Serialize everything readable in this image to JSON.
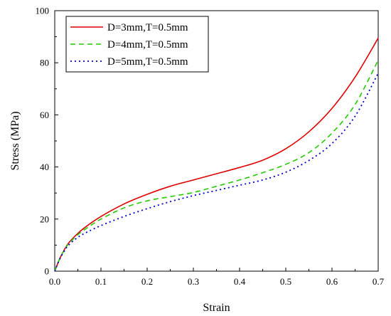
{
  "chart_data": {
    "type": "line",
    "title": "",
    "xlabel": "Strain",
    "ylabel": "Stress (MPa)",
    "xlim": [
      0.0,
      0.7
    ],
    "ylim": [
      0,
      100
    ],
    "xticks": [
      0.0,
      0.1,
      0.2,
      0.3,
      0.4,
      0.5,
      0.6,
      0.7
    ],
    "xtick_labels": [
      "0.0",
      "0.1",
      "0.2",
      "0.3",
      "0.4",
      "0.5",
      "0.6",
      "0.7"
    ],
    "yticks": [
      0,
      20,
      40,
      60,
      80,
      100
    ],
    "ytick_labels": [
      "0",
      "20",
      "40",
      "60",
      "80",
      "100"
    ],
    "grid": false,
    "legend_position": "top-left",
    "series": [
      {
        "name": "D=3mm,T=0.5mm",
        "color": "#e00000",
        "style": "solid",
        "x": [
          0,
          0.01,
          0.02,
          0.03,
          0.05,
          0.07,
          0.1,
          0.15,
          0.2,
          0.25,
          0.3,
          0.35,
          0.4,
          0.45,
          0.5,
          0.55,
          0.6,
          0.65,
          0.7
        ],
        "y": [
          0,
          4.5,
          8.0,
          10.8,
          14.5,
          17.4,
          21.0,
          25.8,
          29.5,
          32.6,
          35.0,
          37.4,
          39.8,
          42.6,
          47.0,
          53.5,
          62.5,
          74.5,
          89.5
        ]
      },
      {
        "name": "D=4mm,T=0.5mm",
        "color": "#22cc00",
        "style": "dashed",
        "x": [
          0,
          0.01,
          0.02,
          0.03,
          0.05,
          0.07,
          0.1,
          0.15,
          0.2,
          0.25,
          0.3,
          0.35,
          0.4,
          0.45,
          0.5,
          0.55,
          0.6,
          0.65,
          0.7
        ],
        "y": [
          0,
          4.5,
          8.0,
          10.5,
          14.0,
          16.6,
          20.0,
          24.3,
          27.0,
          28.6,
          30.2,
          32.6,
          35.0,
          37.8,
          41.0,
          45.5,
          53.0,
          64.0,
          81.0
        ]
      },
      {
        "name": "D=5mm,T=0.5mm",
        "color": "#0000cc",
        "style": "dotted",
        "x": [
          0,
          0.01,
          0.02,
          0.03,
          0.05,
          0.07,
          0.1,
          0.15,
          0.2,
          0.25,
          0.3,
          0.35,
          0.4,
          0.45,
          0.5,
          0.55,
          0.6,
          0.65,
          0.7
        ],
        "y": [
          0,
          4.3,
          7.5,
          10.0,
          13.0,
          15.0,
          17.5,
          21.0,
          24.0,
          26.7,
          29.0,
          31.0,
          33.0,
          35.0,
          38.0,
          42.5,
          49.0,
          59.5,
          76.0
        ]
      }
    ]
  }
}
